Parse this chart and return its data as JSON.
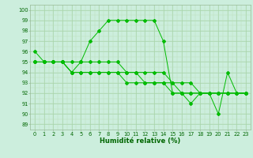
{
  "series": [
    [
      96,
      95,
      95,
      95,
      94,
      95,
      97,
      98,
      99,
      99,
      99,
      99,
      99,
      99,
      97,
      92,
      92,
      91,
      92,
      92,
      90,
      94,
      92,
      92
    ],
    [
      95,
      95,
      95,
      95,
      94,
      94,
      94,
      94,
      94,
      94,
      93,
      93,
      93,
      93,
      93,
      92,
      92,
      92,
      92,
      92,
      92,
      92,
      92,
      92
    ],
    [
      95,
      95,
      95,
      95,
      94,
      94,
      94,
      94,
      94,
      94,
      94,
      94,
      93,
      93,
      93,
      93,
      92,
      92,
      92,
      92,
      92,
      92,
      92,
      92
    ],
    [
      95,
      95,
      95,
      95,
      95,
      95,
      95,
      95,
      95,
      95,
      94,
      94,
      94,
      94,
      94,
      93,
      93,
      93,
      92,
      92,
      92,
      92,
      92,
      92
    ]
  ],
  "x": [
    0,
    1,
    2,
    3,
    4,
    5,
    6,
    7,
    8,
    9,
    10,
    11,
    12,
    13,
    14,
    15,
    16,
    17,
    18,
    19,
    20,
    21,
    22,
    23
  ],
  "line_color": "#00bb00",
  "bg_color": "#cceedd",
  "grid_major_color": "#99cc99",
  "grid_minor_color": "#bbddbb",
  "xlabel": "Humidité relative (%)",
  "yticks": [
    89,
    90,
    91,
    92,
    93,
    94,
    95,
    96,
    97,
    98,
    99,
    100
  ],
  "ylim": [
    88.5,
    100.5
  ],
  "xlim": [
    -0.5,
    23.5
  ]
}
